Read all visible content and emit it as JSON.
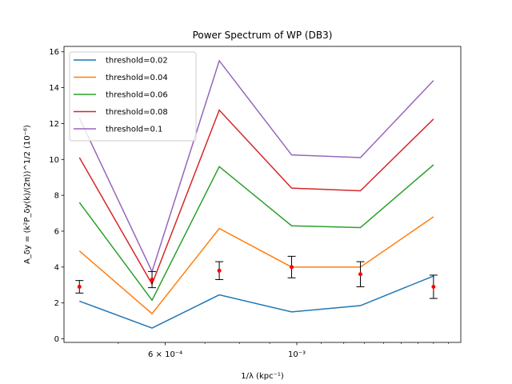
{
  "chart_data": {
    "type": "line",
    "title": "Power Spectrum of WP (DB3)",
    "xlabel": "1/λ (kpc⁻¹)",
    "ylabel": "A_δy = (k²P_δy(k)/(2π))^1/2 (10⁻⁶)",
    "xscale": "log",
    "x": [
      0.00043,
      0.00057,
      0.00074,
      0.00098,
      0.00128,
      0.0017
    ],
    "x_ticks": [
      {
        "value": 0.0006,
        "label": "6 × 10⁻⁴"
      },
      {
        "value": 0.001,
        "label": "10⁻³"
      }
    ],
    "xlim": [
      0.000405,
      0.00189
    ],
    "ylim": [
      -0.2,
      16.3
    ],
    "y_ticks": [
      0,
      2,
      4,
      6,
      8,
      10,
      12,
      14,
      16
    ],
    "series": [
      {
        "name": "threshold=0.02",
        "color": "#1f77b4",
        "values": [
          2.1,
          0.6,
          2.45,
          1.5,
          1.85,
          3.5
        ]
      },
      {
        "name": "threshold=0.04",
        "color": "#ff7f0e",
        "values": [
          4.9,
          1.4,
          6.15,
          4.0,
          4.0,
          6.8
        ]
      },
      {
        "name": "threshold=0.06",
        "color": "#2ca02c",
        "values": [
          7.6,
          2.15,
          9.6,
          6.3,
          6.2,
          9.7
        ]
      },
      {
        "name": "threshold=0.08",
        "color": "#d62728",
        "values": [
          10.1,
          3.05,
          12.75,
          8.4,
          8.25,
          12.25
        ]
      },
      {
        "name": "threshold=0.1",
        "color": "#9467bd",
        "values": [
          12.3,
          3.75,
          15.5,
          10.25,
          10.1,
          14.4
        ]
      }
    ],
    "errorbars": {
      "x": [
        0.00043,
        0.00057,
        0.00074,
        0.00098,
        0.00128,
        0.0017
      ],
      "y": [
        2.9,
        3.3,
        3.8,
        4.0,
        3.6,
        2.9
      ],
      "err": [
        0.35,
        0.45,
        0.5,
        0.6,
        0.7,
        0.65
      ],
      "point_color": "#ff0000",
      "bar_color": "#000000"
    },
    "legend": "top-left",
    "grid": false
  }
}
